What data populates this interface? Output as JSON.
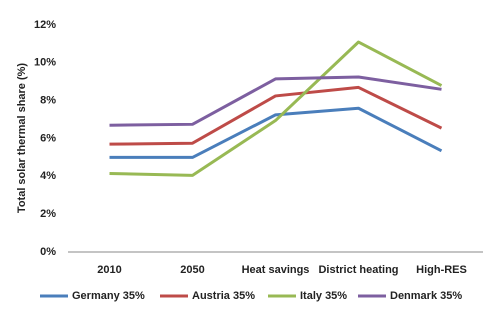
{
  "chart_data": {
    "type": "line",
    "y_label": "Total solar thermal share (%)",
    "categories": [
      "2010",
      "2050",
      "Heat savings",
      "District heating",
      "High-RES"
    ],
    "series": [
      {
        "name": "Germany 35%",
        "color": "#4a7ebb",
        "values": [
          5.0,
          5.0,
          7.25,
          7.6,
          5.35
        ]
      },
      {
        "name": "Austria 35%",
        "color": "#be4b48",
        "values": [
          5.7,
          5.75,
          8.25,
          8.7,
          6.55
        ]
      },
      {
        "name": "Italy 35%",
        "color": "#98b954",
        "values": [
          4.15,
          4.05,
          6.95,
          11.1,
          8.8
        ]
      },
      {
        "name": "Denmark 35%",
        "color": "#7d5fa0",
        "values": [
          6.7,
          6.75,
          9.15,
          9.25,
          8.6
        ]
      }
    ],
    "ylim": [
      0,
      12
    ],
    "yticks": [
      {
        "value": 0,
        "label": "0%"
      },
      {
        "value": 2,
        "label": "2%"
      },
      {
        "value": 4,
        "label": "4%"
      },
      {
        "value": 6,
        "label": "6%"
      },
      {
        "value": 8,
        "label": "8%"
      },
      {
        "value": 10,
        "label": "10%"
      },
      {
        "value": 12,
        "label": "12%"
      }
    ],
    "grid": false,
    "legend": "bottom"
  }
}
